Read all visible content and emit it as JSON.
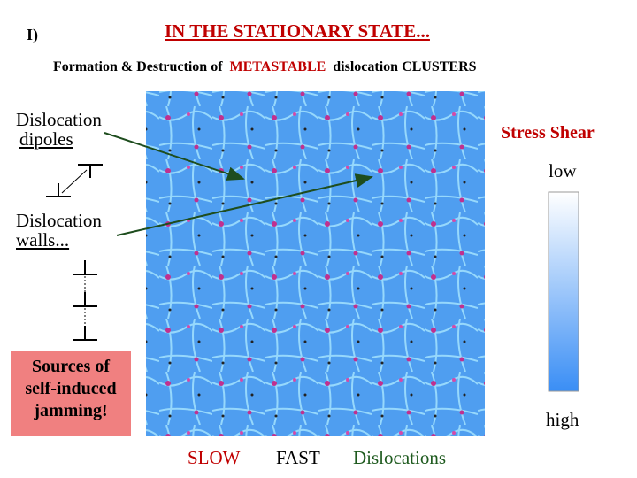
{
  "header": {
    "label": "I)",
    "title": "IN THE STATIONARY STATE..."
  },
  "subtitle": {
    "before": "Formation & Destruction of",
    "highlight": "METASTABLE",
    "after": "dislocation CLUSTERS"
  },
  "left": {
    "dipoles": [
      "Dislocation",
      "dipoles"
    ],
    "walls": [
      "Dislocation",
      "walls..."
    ],
    "box": [
      "Sources of",
      "self-induced",
      "jamming!"
    ]
  },
  "scale": {
    "title": "Stress Shear",
    "low": "low",
    "high": "high"
  },
  "footer": {
    "slow": "SLOW",
    "fast": "FAST",
    "label": "Dislocations"
  }
}
